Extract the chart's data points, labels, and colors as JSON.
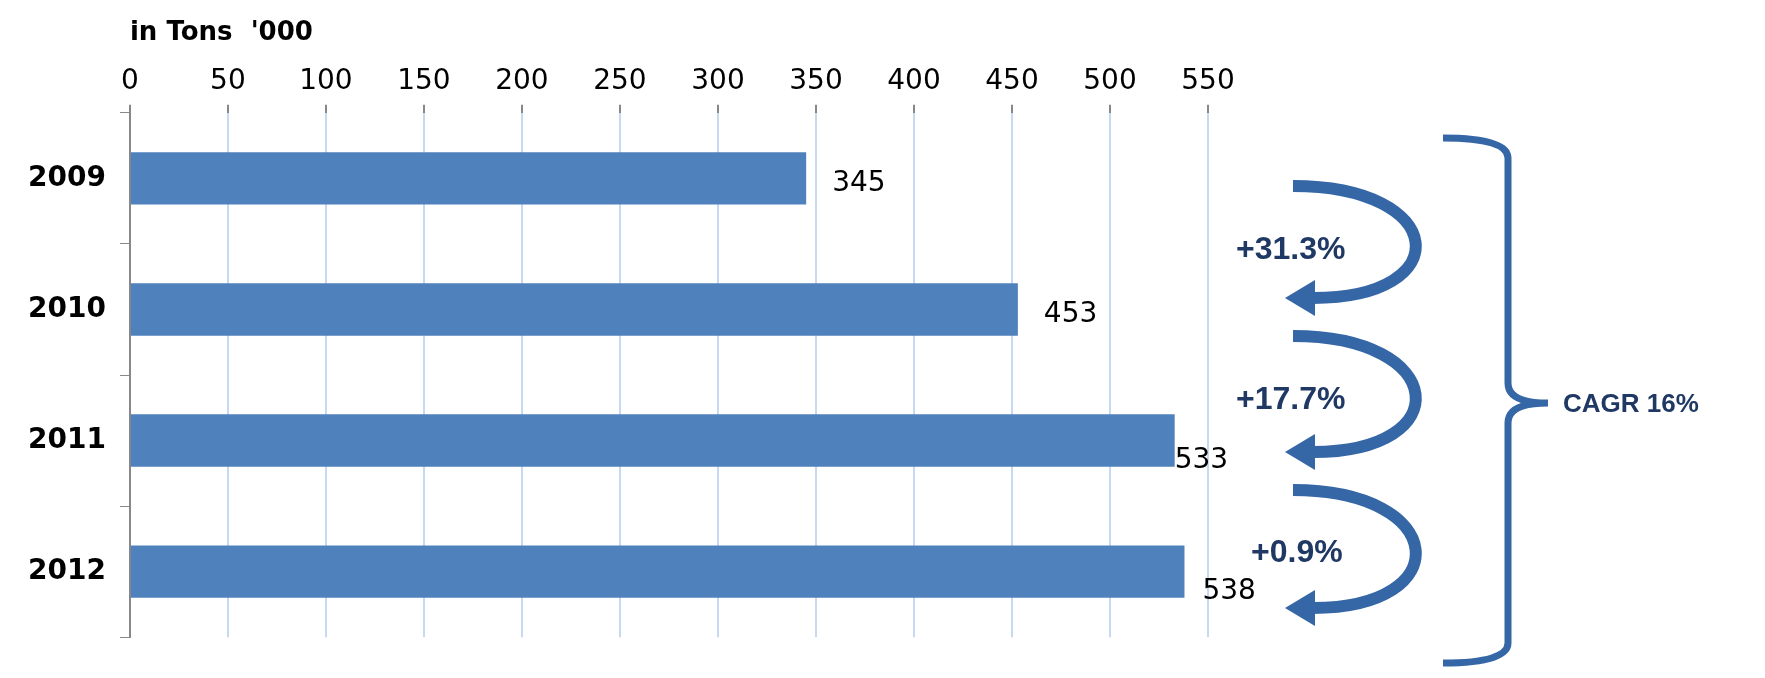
{
  "chart_data": {
    "type": "bar",
    "orientation": "horizontal",
    "xlabel": "in Tons  '000",
    "categories": [
      "2009",
      "2010",
      "2011",
      "2012"
    ],
    "values": [
      345,
      453,
      533,
      538
    ],
    "color": "#4f81bd",
    "xlim": [
      0,
      550
    ],
    "xticks": [
      0,
      50,
      100,
      150,
      200,
      250,
      300,
      350,
      400,
      450,
      500,
      550
    ],
    "grid": "x",
    "data_labels": true,
    "legend": false,
    "annotations": [
      "+31.3%",
      "+17.7%",
      "+0.9%",
      "CAGR 16%"
    ]
  }
}
